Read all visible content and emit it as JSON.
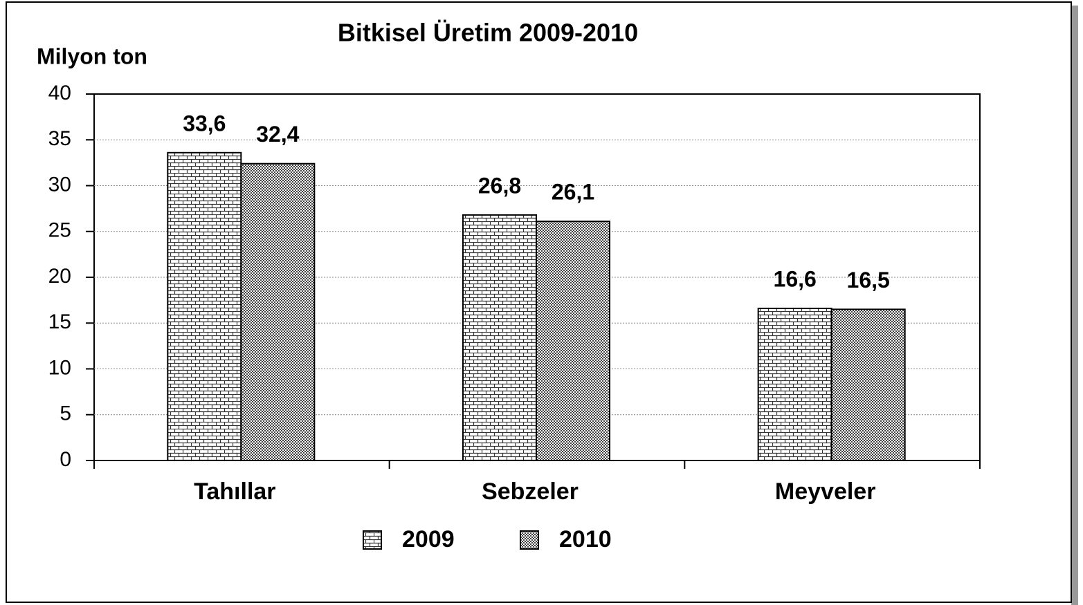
{
  "chart_data": {
    "type": "bar",
    "title": "Bitkisel Üretim 2009-2010",
    "y_label": "Milyon ton",
    "categories": [
      "Tahıllar",
      "Sebzeler",
      "Meyveler"
    ],
    "series": [
      {
        "name": "2009",
        "values": [
          33.6,
          26.8,
          16.6
        ],
        "value_labels": [
          "33,6",
          "26,8",
          "16,6"
        ]
      },
      {
        "name": "2010",
        "values": [
          32.4,
          26.1,
          16.5
        ],
        "value_labels": [
          "32,4",
          "26,1",
          "16,5"
        ]
      }
    ],
    "ylim": [
      0,
      40
    ],
    "yticks": [
      0,
      5,
      10,
      15,
      20,
      25,
      30,
      35,
      40
    ],
    "grid": true
  }
}
